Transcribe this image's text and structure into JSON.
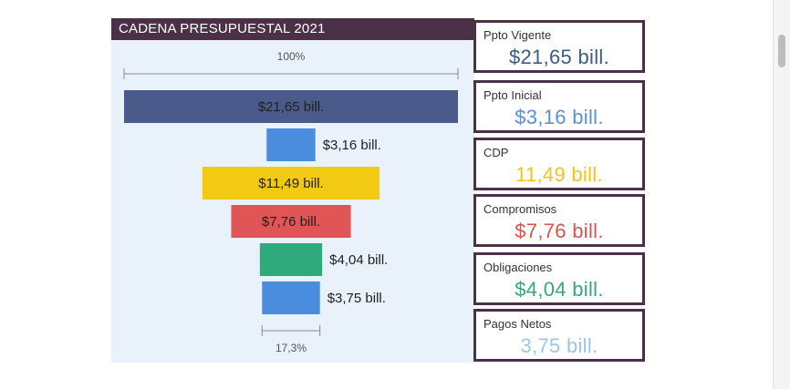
{
  "chart_data": {
    "type": "funnel",
    "title": "CADENA PRESUPUESTAL 2021",
    "top_percent_label": "100%",
    "bottom_percent_label": "17,3%",
    "unit": "bill.",
    "stages": [
      {
        "name": "Ppto Vigente",
        "value": 21.65,
        "label": "$21,65 bill.",
        "color": "#4a5a8a",
        "label_color": "#1f1f1f"
      },
      {
        "name": "Ppto Inicial",
        "value": 3.16,
        "label": "$3,16 bill.",
        "color": "#4a8cde",
        "label_color": "#1f1f1f"
      },
      {
        "name": "CDP",
        "value": 11.49,
        "label": "$11,49 bill.",
        "color": "#f2c913",
        "label_color": "#1f1f1f"
      },
      {
        "name": "Compromisos",
        "value": 7.76,
        "label": "$7,76 bill.",
        "color": "#e05656",
        "label_color": "#1f1f1f"
      },
      {
        "name": "Obligaciones",
        "value": 4.04,
        "label": "$4,04 bill.",
        "color": "#2eaa7c",
        "label_color": "#1f1f1f"
      },
      {
        "name": "Pagos Netos",
        "value": 3.75,
        "label": "$3,75 bill.",
        "color": "#4a8cde",
        "label_color": "#1f1f1f"
      }
    ]
  },
  "cards": [
    {
      "label": "Ppto Vigente",
      "value": "$21,65 bill.",
      "color": "#3e5a80"
    },
    {
      "label": "Ppto Inicial",
      "value": "$3,16 bill.",
      "color": "#5b8fd6"
    },
    {
      "label": "CDP",
      "value": "11,49 bill.",
      "color": "#f2c21b"
    },
    {
      "label": "Compromisos",
      "value": "$7,76 bill.",
      "color": "#d9534f"
    },
    {
      "label": "Obligaciones",
      "value": "$4,04 bill.",
      "color": "#3aa57a"
    },
    {
      "label": "Pagos Netos",
      "value": "3,75 bill.",
      "color": "#9cc4ea"
    }
  ]
}
